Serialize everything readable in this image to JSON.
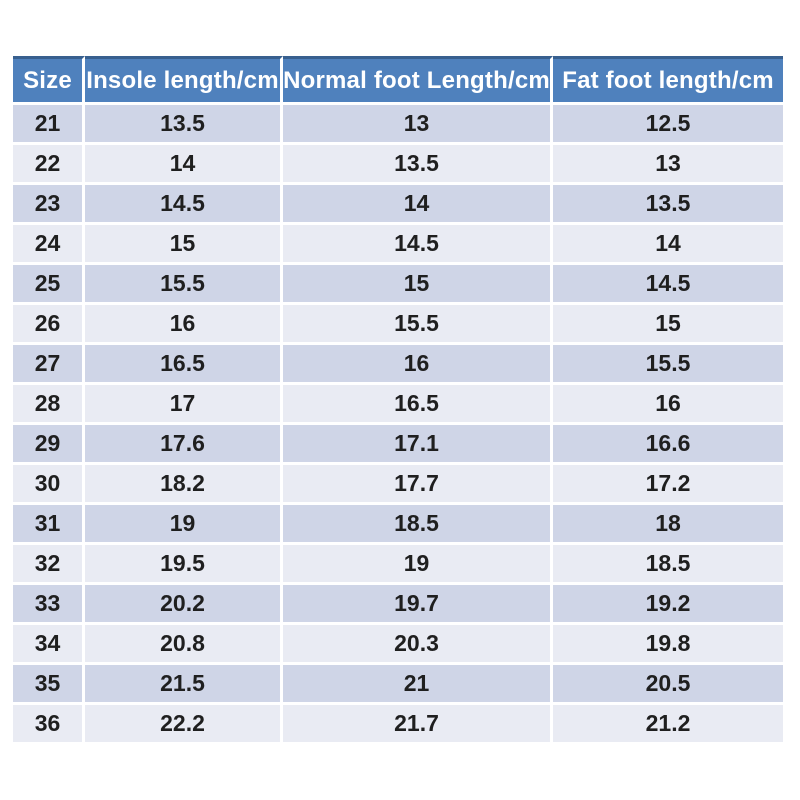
{
  "colors": {
    "header_bg": "#4f81bd",
    "header_text": "#ffffff",
    "header_top_border": "#38608f",
    "row_dark": "#cfd5e7",
    "row_light": "#e9ebf3",
    "body_text": "#1f1f1f",
    "separator": "#ffffff"
  },
  "chart_data": {
    "type": "table",
    "title": "",
    "columns": [
      "Size",
      "Insole length/cm",
      "Normal foot Length/cm",
      "Fat foot length/cm"
    ],
    "rows": [
      [
        21,
        13.5,
        13,
        12.5
      ],
      [
        22,
        14,
        13.5,
        13
      ],
      [
        23,
        14.5,
        14,
        13.5
      ],
      [
        24,
        15,
        14.5,
        14
      ],
      [
        25,
        15.5,
        15,
        14.5
      ],
      [
        26,
        16,
        15.5,
        15
      ],
      [
        27,
        16.5,
        16,
        15.5
      ],
      [
        28,
        17,
        16.5,
        16
      ],
      [
        29,
        17.6,
        17.1,
        16.6
      ],
      [
        30,
        18.2,
        17.7,
        17.2
      ],
      [
        31,
        19,
        18.5,
        18
      ],
      [
        32,
        19.5,
        19,
        18.5
      ],
      [
        33,
        20.2,
        19.7,
        19.2
      ],
      [
        34,
        20.8,
        20.3,
        19.8
      ],
      [
        35,
        21.5,
        21,
        20.5
      ],
      [
        36,
        22.2,
        21.7,
        21.2
      ]
    ]
  }
}
